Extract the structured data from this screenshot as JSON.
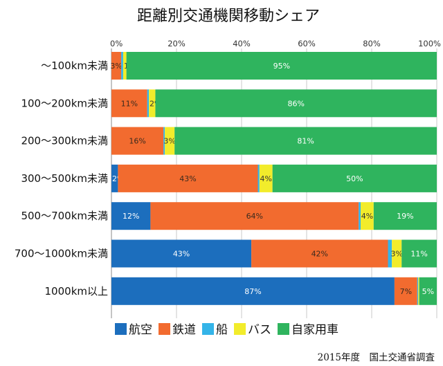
{
  "chart_data": {
    "type": "bar",
    "orientation": "horizontal",
    "stacked": true,
    "title": "距離別交通機関移動シェア",
    "source": "2015年度　国土交通省調査",
    "xlim": [
      0,
      100
    ],
    "x_ticks": [
      "0%",
      "20%",
      "40%",
      "60%",
      "80%",
      "100%"
    ],
    "grid": true,
    "legend_position": "bottom",
    "categories": [
      "～100km未満",
      "100～200km未満",
      "200～300km未満",
      "300～500km未満",
      "500～700km未満",
      "700～1000km未満",
      "1000km以上"
    ],
    "series": [
      {
        "name": "航空",
        "color": "#1c6ebd",
        "label_color": "#ffffff",
        "values": [
          0,
          0,
          0,
          2,
          12,
          43,
          87
        ],
        "labels": [
          "",
          "",
          "",
          "2%",
          "12%",
          "43%",
          "87%"
        ]
      },
      {
        "name": "鉄道",
        "color": "#f26b2f",
        "label_color": "#3a2a1e",
        "values": [
          3,
          11,
          16,
          43,
          64,
          42,
          7
        ],
        "labels": [
          "3%",
          "11%",
          "16%",
          "43%",
          "64%",
          "42%",
          "7%"
        ]
      },
      {
        "name": "船",
        "color": "#34b4e8",
        "label_color": "#ffffff",
        "values": [
          0.6,
          0.5,
          0.4,
          0.5,
          0.6,
          1.2,
          0.3
        ],
        "labels": [
          "",
          "",
          "",
          "",
          "",
          "",
          ""
        ]
      },
      {
        "name": "バス",
        "color": "#f2ec2b",
        "label_color": "#333333",
        "values": [
          1,
          2,
          3,
          4,
          4,
          3,
          0.3
        ],
        "labels": [
          "1%",
          "2%",
          "3%",
          "4%",
          "4%",
          "3%",
          ""
        ]
      },
      {
        "name": "自家用車",
        "color": "#2fb45e",
        "label_color": "#ffffff",
        "values": [
          95.4,
          86.5,
          80.6,
          50.5,
          19.4,
          10.8,
          5.4
        ],
        "labels": [
          "95%",
          "86%",
          "81%",
          "50%",
          "19%",
          "11%",
          "5%"
        ]
      }
    ]
  }
}
